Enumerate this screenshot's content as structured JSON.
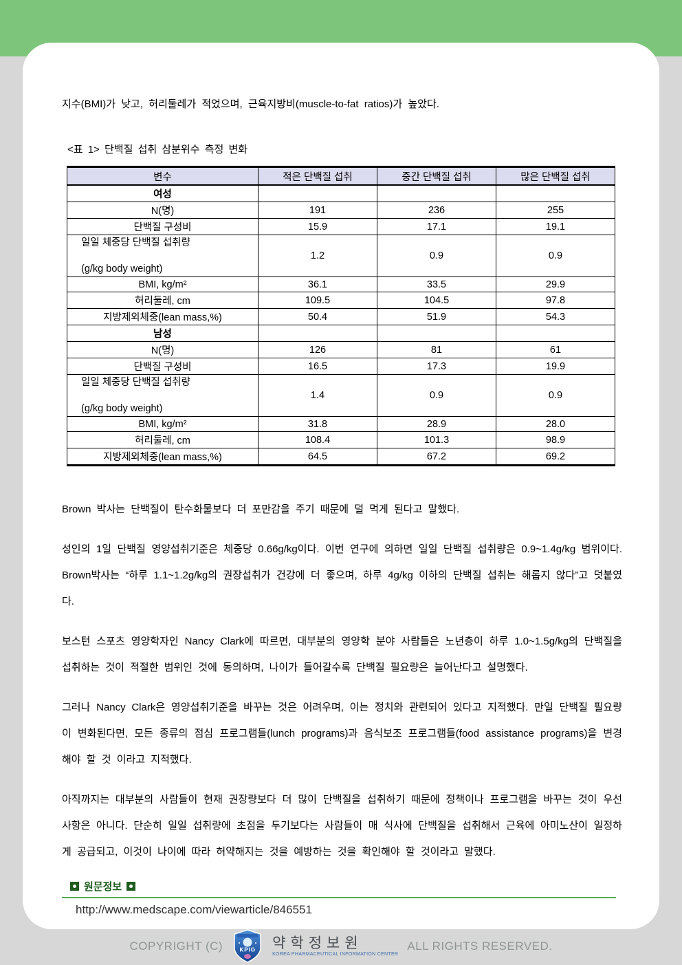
{
  "colors": {
    "band_green": "#7dc57a",
    "page_gray": "#d6d7d6",
    "table_header_bg": "#dcdcf0",
    "rule_green": "#55ab4f",
    "heading_green": "#1d5c1d",
    "footer_gray": "#8f9595"
  },
  "intro": "지수(BMI)가 낮고, 허리둘레가 적었으며, 근육지방비(muscle-to-fat ratios)가 높았다.",
  "table": {
    "title": "<표 1> 단백질 섭취 삼분위수 측정 변화",
    "columns": [
      "변수",
      "적은 단백질 섭취",
      "중간 단백질 섭취",
      "많은 단백질 섭취"
    ],
    "rows": [
      {
        "type": "section",
        "label": "여성",
        "values": [
          "",
          "",
          ""
        ]
      },
      {
        "type": "data",
        "label": "N(명)",
        "values": [
          "191",
          "236",
          "255"
        ]
      },
      {
        "type": "data",
        "label": "단백질 구성비",
        "values": [
          "15.9",
          "17.1",
          "19.1"
        ]
      },
      {
        "type": "tall",
        "label": "일일 체중당 단백질 섭취량\n\n(g/kg body weight)",
        "values": [
          "1.2",
          "0.9",
          "0.9"
        ]
      },
      {
        "type": "data",
        "label": "BMI, kg/m²",
        "values": [
          "36.1",
          "33.5",
          "29.9"
        ]
      },
      {
        "type": "data",
        "label": "허리둘레, cm",
        "values": [
          "109.5",
          "104.5",
          "97.8"
        ]
      },
      {
        "type": "data",
        "label": "지방제외체중(lean mass,%)",
        "values": [
          "50.4",
          "51.9",
          "54.3"
        ]
      },
      {
        "type": "section",
        "label": "남성",
        "values": [
          "",
          "",
          ""
        ]
      },
      {
        "type": "data",
        "label": "N(명)",
        "values": [
          "126",
          "81",
          "61"
        ]
      },
      {
        "type": "data",
        "label": "단백질 구성비",
        "values": [
          "16.5",
          "17.3",
          "19.9"
        ]
      },
      {
        "type": "tall",
        "label": "일일 체중당 단백질 섭취량\n\n(g/kg body weight)",
        "values": [
          "1.4",
          "0.9",
          "0.9"
        ]
      },
      {
        "type": "data",
        "label": "BMI, kg/m²",
        "values": [
          "31.8",
          "28.9",
          "28.0"
        ]
      },
      {
        "type": "data",
        "label": "허리둘레, cm",
        "values": [
          "108.4",
          "101.3",
          "98.9"
        ]
      },
      {
        "type": "data",
        "label": "지방제외체중(lean mass,%)",
        "values": [
          "64.5",
          "67.2",
          "69.2"
        ]
      }
    ]
  },
  "paragraphs": [
    "Brown 박사는 단백질이 탄수화물보다 더 포만감을 주기 때문에 덜 먹게 된다고 말했다.",
    "성인의 1일 단백질 영양섭취기준은 체중당 0.66g/kg이다. 이번 연구에 의하면 일일 단백질 섭취량은 0.9~1.4g/kg 범위이다. Brown박사는 “하루 1.1~1.2g/kg의 권장섭취가 건강에 더 좋으며, 하루 4g/kg 이하의 단백질 섭취는 해롭지 않다”고 덧붙였다.",
    "보스턴 스포츠 영양학자인 Nancy Clark에 따르면, 대부분의 영양학 분야 사람들은 노년층이 하루 1.0~1.5g/kg의 단백질을 섭취하는 것이 적절한 범위인 것에 동의하며, 나이가 들어갈수록 단백질 필요량은 늘어난다고 설명했다.",
    "그러나 Nancy Clark은 영양섭취기준을 바꾸는 것은 어려우며, 이는 정치와 관련되어 있다고 지적했다. 만일 단백질 필요량이 변화된다면, 모든 종류의 점심 프로그램들(lunch programs)과 음식보조 프로그램들(food assistance programs)을 변경해야 할 것 이라고 지적했다.",
    "아직까지는 대부분의 사람들이 현재 권장량보다 더 많이 단백질을 섭취하기 때문에 정책이나 프로그램을 바꾸는 것이 우선 사항은 아니다. 단순히 일일 섭취량에 초점을 두기보다는 사람들이 매 식사에 단백질을 섭취해서 근육에 아미노산이 일정하게 공급되고, 이것이 나이에 따라 허약해지는 것을 예방하는 것을 확인해야 할 것이라고 말했다."
  ],
  "source": {
    "heading": "원문정보",
    "url": "http://www.medscape.com/viewarticle/846551"
  },
  "footer": {
    "copyright_left": "COPYRIGHT (C)",
    "logo_text": "KPIC",
    "org_name": "약학정보원",
    "org_caption": "KOREA PHARMACEUTICAL INFORMATION CENTER",
    "copyright_right": "ALL RIGHTS RESERVED."
  }
}
